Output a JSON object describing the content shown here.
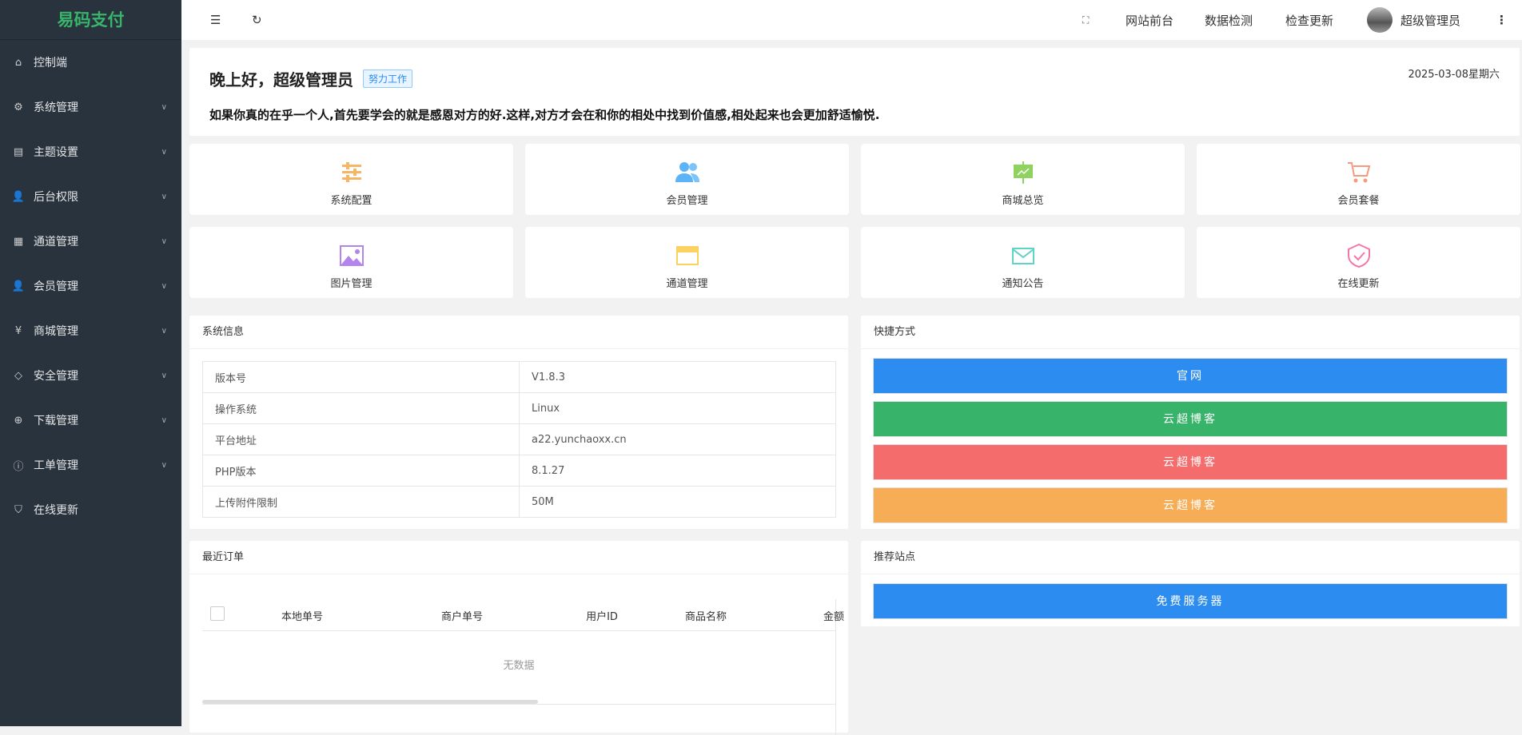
{
  "app": {
    "logo": "易码支付"
  },
  "sidebar": {
    "items": [
      {
        "label": "控制端",
        "icon": "home-icon",
        "sym": "⌂",
        "chev": false
      },
      {
        "label": "系统管理",
        "icon": "gear-icon",
        "sym": "⚙",
        "chev": true
      },
      {
        "label": "主题设置",
        "icon": "layout-icon",
        "sym": "▤",
        "chev": true
      },
      {
        "label": "后台权限",
        "icon": "user-icon",
        "sym": "👤",
        "chev": true
      },
      {
        "label": "通道管理",
        "icon": "apps-icon",
        "sym": "▦",
        "chev": true
      },
      {
        "label": "会员管理",
        "icon": "user-icon",
        "sym": "👤",
        "chev": true
      },
      {
        "label": "商城管理",
        "icon": "yen-icon",
        "sym": "¥",
        "chev": true
      },
      {
        "label": "安全管理",
        "icon": "diamond-icon",
        "sym": "◇",
        "chev": true
      },
      {
        "label": "下载管理",
        "icon": "download-icon",
        "sym": "⊕",
        "chev": true
      },
      {
        "label": "工单管理",
        "icon": "info-icon",
        "sym": "ⓘ",
        "chev": true
      },
      {
        "label": "在线更新",
        "icon": "shield-check-icon",
        "sym": "⛉",
        "chev": false
      }
    ]
  },
  "header": {
    "links": [
      "网站前台",
      "数据检测",
      "检查更新"
    ],
    "user": "超级管理员"
  },
  "welcome": {
    "greeting": "晚上好，超级管理员",
    "tag": "努力工作",
    "date": "2025-03-08星期六",
    "quote": "如果你真的在乎一个人,首先要学会的就是感恩对方的好.这样,对方才会在和你的相处中找到价值感,相处起来也会更加舒适愉悦."
  },
  "tiles": [
    {
      "label": "系统配置",
      "icon": "sliders-icon",
      "color": "#f7b566"
    },
    {
      "label": "会员管理",
      "icon": "users-icon",
      "color": "#5ab4f7"
    },
    {
      "label": "商城总览",
      "icon": "presentation-icon",
      "color": "#8fd25f"
    },
    {
      "label": "会员套餐",
      "icon": "cart-icon",
      "color": "#f59a7a"
    },
    {
      "label": "图片管理",
      "icon": "image-icon",
      "color": "#b383ee"
    },
    {
      "label": "通道管理",
      "icon": "window-icon",
      "color": "#fbd262"
    },
    {
      "label": "通知公告",
      "icon": "mail-icon",
      "color": "#5fd3c8"
    },
    {
      "label": "在线更新",
      "icon": "shield-check-icon",
      "color": "#f776a8"
    }
  ],
  "sysinfo": {
    "title": "系统信息",
    "rows": [
      [
        "版本号",
        "V1.8.3"
      ],
      [
        "操作系统",
        "Linux"
      ],
      [
        "平台地址",
        "a22.yunchaoxx.cn"
      ],
      [
        "PHP版本",
        "8.1.27"
      ],
      [
        "上传附件限制",
        "50M"
      ]
    ]
  },
  "quick": {
    "title": "快捷方式",
    "buttons": [
      {
        "label": "官网",
        "color": "#2d8cf0"
      },
      {
        "label": "云超博客",
        "color": "#37b36a"
      },
      {
        "label": "云超博客",
        "color": "#f46c6c"
      },
      {
        "label": "云超博客",
        "color": "#f6ad56"
      }
    ]
  },
  "orders": {
    "title": "最近订单",
    "columns": [
      "本地单号",
      "商户单号",
      "用户ID",
      "商品名称",
      "金额"
    ],
    "empty": "无数据"
  },
  "recommend": {
    "title": "推荐站点",
    "buttons": [
      {
        "label": "免费服务器",
        "color": "#2d8cf0"
      }
    ]
  }
}
